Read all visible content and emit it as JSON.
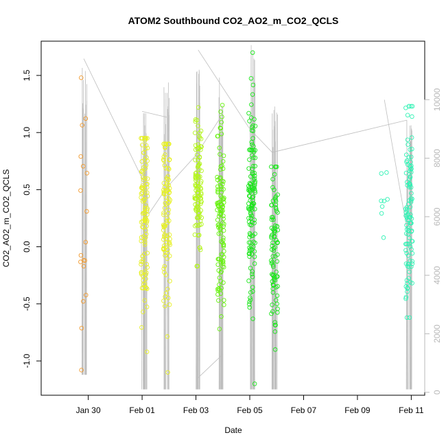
{
  "chart_data": {
    "type": "scatter",
    "title": "ATOM2 Southbound CO2_AO2_m_CO2_QCLS",
    "xlabel": "Date",
    "ylabel": "CO2_AO2_m_CO2_QCLS",
    "xlim": [
      "2017-01-28T06:00",
      "2017-02-11T12:00"
    ],
    "ylim": [
      -1.3,
      1.8
    ],
    "y2lim": [
      -100,
      12000
    ],
    "x_ticks": [
      {
        "value": "2017-01-30",
        "label": "Jan 30"
      },
      {
        "value": "2017-02-01",
        "label": "Feb 01"
      },
      {
        "value": "2017-02-03",
        "label": "Feb 03"
      },
      {
        "value": "2017-02-05",
        "label": "Feb 05"
      },
      {
        "value": "2017-02-07",
        "label": "Feb 07"
      },
      {
        "value": "2017-02-09",
        "label": "Feb 09"
      },
      {
        "value": "2017-02-11",
        "label": "Feb 11"
      }
    ],
    "y_ticks": [
      -1.0,
      -0.5,
      0.0,
      0.5,
      1.0,
      1.5
    ],
    "y_tick_labels": [
      "-1.0",
      "-0.5",
      "0.0",
      "0.5",
      "1.0",
      "1.5"
    ],
    "y2_ticks": [
      0,
      2000,
      4000,
      6000,
      8000,
      10000
    ],
    "y2_tick_labels": [
      "0",
      "2000",
      "4000",
      "6000",
      "8000",
      "10000"
    ],
    "grid": false,
    "legend": "none",
    "colors": {
      "orange": "#f29a2e",
      "yellow": "#e6f023",
      "yellow_green": "#b3f51a",
      "lime": "#66f20d",
      "green": "#1ae61a",
      "bright_green": "#14e650",
      "aquamarine": "#30f2b4",
      "altitude_line": "#bdbdbd"
    },
    "flights": [
      {
        "date": "2017-01-29T20:00",
        "color": "orange",
        "count": 18,
        "ymin": -1.08,
        "ymax": 1.48,
        "center": 0.4,
        "spread": 0.5
      },
      {
        "date": "2017-02-01T02:00",
        "color": "yellow",
        "count": 110,
        "ymin": -0.92,
        "ymax": 0.95,
        "center": 0.3,
        "spread": 0.45
      },
      {
        "date": "2017-02-01T22:00",
        "color": "yellow",
        "count": 100,
        "ymin": -1.1,
        "ymax": 0.9,
        "center": 0.25,
        "spread": 0.45
      },
      {
        "date": "2017-02-03T02:00",
        "color": "yellow_green",
        "count": 110,
        "ymin": -0.17,
        "ymax": 1.22,
        "center": 0.55,
        "spread": 0.3
      },
      {
        "date": "2017-02-03T22:00",
        "color": "lime",
        "count": 120,
        "ymin": -0.72,
        "ymax": 1.24,
        "center": 0.2,
        "spread": 0.4
      },
      {
        "date": "2017-02-05T02:00",
        "color": "green",
        "count": 130,
        "ymin": -1.2,
        "ymax": 1.7,
        "center": 0.35,
        "spread": 0.5
      },
      {
        "date": "2017-02-05T22:00",
        "color": "green",
        "count": 90,
        "ymin": -0.9,
        "ymax": 0.7,
        "center": -0.05,
        "spread": 0.35
      },
      {
        "date": "2017-02-10T00:00",
        "color": "aquamarine",
        "count": 8,
        "ymin": 0.08,
        "ymax": 0.65,
        "center": 0.45,
        "spread": 0.2
      },
      {
        "date": "2017-02-10T22:00",
        "color": "aquamarine",
        "count": 110,
        "ymin": -0.62,
        "ymax": 1.23,
        "center": 0.35,
        "spread": 0.4
      }
    ],
    "altitude_profiles": [
      {
        "date": "2017-01-29T20:00",
        "alt_min": 600,
        "alt_max": 11400
      },
      {
        "date": "2017-02-01T02:00",
        "alt_min": 100,
        "alt_max": 10300
      },
      {
        "date": "2017-02-01T22:00",
        "alt_min": 100,
        "alt_max": 10600
      },
      {
        "date": "2017-02-03T02:00",
        "alt_min": 100,
        "alt_max": 11900
      },
      {
        "date": "2017-02-03T22:00",
        "alt_min": 100,
        "alt_max": 10800
      },
      {
        "date": "2017-02-05T02:00",
        "alt_min": 100,
        "alt_max": 12000
      },
      {
        "date": "2017-02-05T22:00",
        "alt_min": 100,
        "alt_max": 10000
      },
      {
        "date": "2017-02-10T22:00",
        "alt_min": 100,
        "alt_max": 9800
      }
    ],
    "altitude_transits": [
      [
        [
          "2017-01-29T20:00",
          11400
        ],
        [
          "2017-02-01T04:00",
          7000
        ]
      ],
      [
        [
          "2017-02-01T04:00",
          7000
        ],
        [
          "2017-02-01T06:00",
          6100
        ]
      ],
      [
        [
          "2017-02-01T00:00",
          9600
        ],
        [
          "2017-02-01T22:00",
          9400
        ]
      ],
      [
        [
          "2017-02-01T06:00",
          6100
        ],
        [
          "2017-02-01T22:00",
          7000
        ]
      ],
      [
        [
          "2017-02-01T22:00",
          7000
        ],
        [
          "2017-02-03T00:00",
          8100
        ]
      ],
      [
        [
          "2017-02-03T00:00",
          8100
        ],
        [
          "2017-02-03T22:00",
          9400
        ]
      ],
      [
        [
          "2017-02-03T02:00",
          11700
        ],
        [
          "2017-02-05T00:00",
          9000
        ]
      ],
      [
        [
          "2017-02-03T02:00",
          500
        ],
        [
          "2017-02-04T00:00",
          1300
        ]
      ],
      [
        [
          "2017-02-05T00:00",
          9000
        ],
        [
          "2017-02-05T20:00",
          8200
        ]
      ],
      [
        [
          "2017-02-05T20:00",
          8200
        ],
        [
          "2017-02-10T20:00",
          9300
        ]
      ],
      [
        [
          "2017-02-10T00:00",
          10000
        ],
        [
          "2017-02-10T20:00",
          5600
        ]
      ]
    ]
  }
}
